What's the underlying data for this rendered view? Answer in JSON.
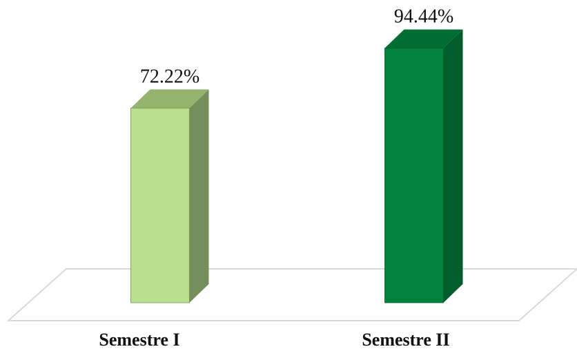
{
  "chart_data": {
    "type": "bar",
    "style": "3d-column",
    "categories": [
      "Semestre I",
      "Semestre II"
    ],
    "values": [
      72.22,
      94.44
    ],
    "value_labels": [
      "72.22%",
      "94.44%"
    ],
    "ylim": [
      0,
      100
    ],
    "grid": false,
    "legend": "none",
    "colors": {
      "bars": [
        {
          "front": "#B8E08C",
          "top": "#93B36F",
          "side": "#758E5B"
        },
        {
          "front": "#00843D",
          "top": "#006E33",
          "side": "#005C2A"
        }
      ],
      "floor": "#D9D9D9",
      "label_text": "#111111"
    }
  }
}
